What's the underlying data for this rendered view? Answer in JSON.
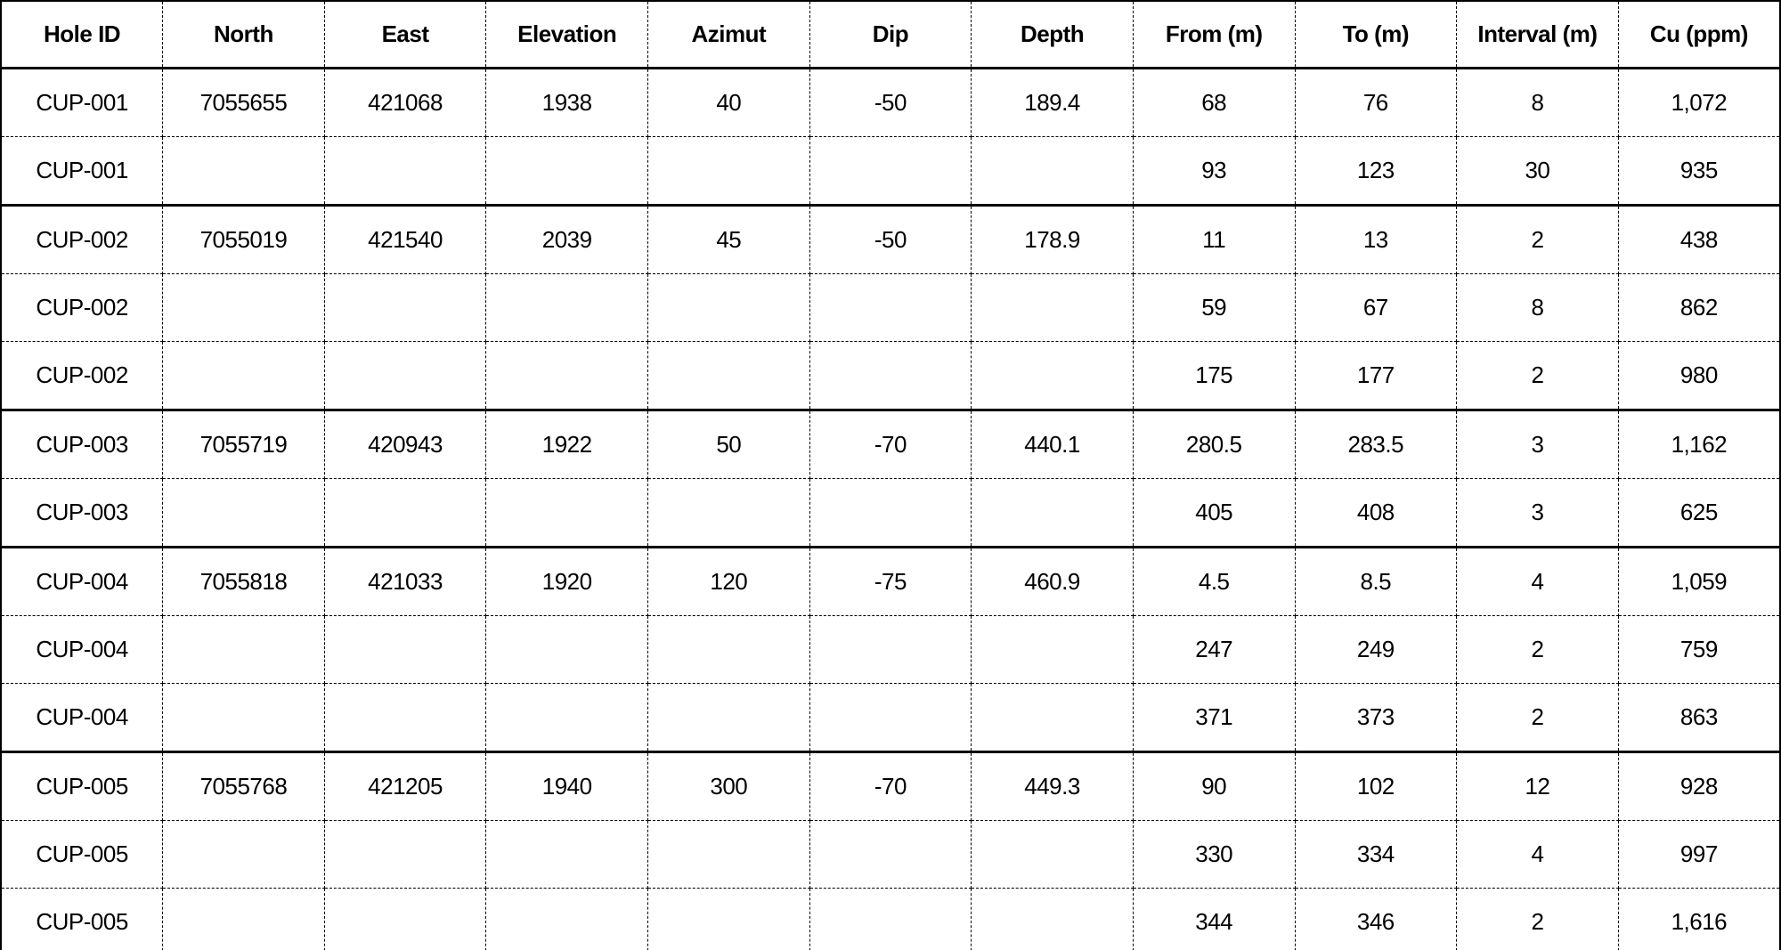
{
  "colors": {
    "border": "#000000",
    "text": "#000000",
    "background": "#ffffff"
  },
  "table": {
    "columns": [
      {
        "key": "hole_id",
        "label": "Hole ID"
      },
      {
        "key": "north",
        "label": "North"
      },
      {
        "key": "east",
        "label": "East"
      },
      {
        "key": "elevation",
        "label": "Elevation"
      },
      {
        "key": "azimut",
        "label": "Azimut"
      },
      {
        "key": "dip",
        "label": "Dip"
      },
      {
        "key": "depth",
        "label": "Depth"
      },
      {
        "key": "from_m",
        "label": "From (m)"
      },
      {
        "key": "to_m",
        "label": "To (m)"
      },
      {
        "key": "interval_m",
        "label": "Interval (m)"
      },
      {
        "key": "cu_ppm",
        "label": "Cu (ppm)"
      }
    ],
    "rows": [
      {
        "group_start": true,
        "hole_id": "CUP-001",
        "north": "7055655",
        "east": "421068",
        "elevation": "1938",
        "azimut": "40",
        "dip": "-50",
        "depth": "189.4",
        "from_m": "68",
        "to_m": "76",
        "interval_m": "8",
        "cu_ppm": "1,072"
      },
      {
        "group_start": false,
        "hole_id": "CUP-001",
        "north": "",
        "east": "",
        "elevation": "",
        "azimut": "",
        "dip": "",
        "depth": "",
        "from_m": "93",
        "to_m": "123",
        "interval_m": "30",
        "cu_ppm": "935"
      },
      {
        "group_start": true,
        "hole_id": "CUP-002",
        "north": "7055019",
        "east": "421540",
        "elevation": "2039",
        "azimut": "45",
        "dip": "-50",
        "depth": "178.9",
        "from_m": "11",
        "to_m": "13",
        "interval_m": "2",
        "cu_ppm": "438"
      },
      {
        "group_start": false,
        "hole_id": "CUP-002",
        "north": "",
        "east": "",
        "elevation": "",
        "azimut": "",
        "dip": "",
        "depth": "",
        "from_m": "59",
        "to_m": "67",
        "interval_m": "8",
        "cu_ppm": "862"
      },
      {
        "group_start": false,
        "hole_id": "CUP-002",
        "north": "",
        "east": "",
        "elevation": "",
        "azimut": "",
        "dip": "",
        "depth": "",
        "from_m": "175",
        "to_m": "177",
        "interval_m": "2",
        "cu_ppm": "980"
      },
      {
        "group_start": true,
        "hole_id": "CUP-003",
        "north": "7055719",
        "east": "420943",
        "elevation": "1922",
        "azimut": "50",
        "dip": "-70",
        "depth": "440.1",
        "from_m": "280.5",
        "to_m": "283.5",
        "interval_m": "3",
        "cu_ppm": "1,162"
      },
      {
        "group_start": false,
        "hole_id": "CUP-003",
        "north": "",
        "east": "",
        "elevation": "",
        "azimut": "",
        "dip": "",
        "depth": "",
        "from_m": "405",
        "to_m": "408",
        "interval_m": "3",
        "cu_ppm": "625"
      },
      {
        "group_start": true,
        "hole_id": "CUP-004",
        "north": "7055818",
        "east": "421033",
        "elevation": "1920",
        "azimut": "120",
        "dip": "-75",
        "depth": "460.9",
        "from_m": "4.5",
        "to_m": "8.5",
        "interval_m": "4",
        "cu_ppm": "1,059"
      },
      {
        "group_start": false,
        "hole_id": "CUP-004",
        "north": "",
        "east": "",
        "elevation": "",
        "azimut": "",
        "dip": "",
        "depth": "",
        "from_m": "247",
        "to_m": "249",
        "interval_m": "2",
        "cu_ppm": "759"
      },
      {
        "group_start": false,
        "hole_id": "CUP-004",
        "north": "",
        "east": "",
        "elevation": "",
        "azimut": "",
        "dip": "",
        "depth": "",
        "from_m": "371",
        "to_m": "373",
        "interval_m": "2",
        "cu_ppm": "863"
      },
      {
        "group_start": true,
        "hole_id": "CUP-005",
        "north": "7055768",
        "east": "421205",
        "elevation": "1940",
        "azimut": "300",
        "dip": "-70",
        "depth": "449.3",
        "from_m": "90",
        "to_m": "102",
        "interval_m": "12",
        "cu_ppm": "928"
      },
      {
        "group_start": false,
        "hole_id": "CUP-005",
        "north": "",
        "east": "",
        "elevation": "",
        "azimut": "",
        "dip": "",
        "depth": "",
        "from_m": "330",
        "to_m": "334",
        "interval_m": "4",
        "cu_ppm": "997"
      },
      {
        "group_start": false,
        "hole_id": "CUP-005",
        "north": "",
        "east": "",
        "elevation": "",
        "azimut": "",
        "dip": "",
        "depth": "",
        "from_m": "344",
        "to_m": "346",
        "interval_m": "2",
        "cu_ppm": "1,616"
      }
    ]
  }
}
